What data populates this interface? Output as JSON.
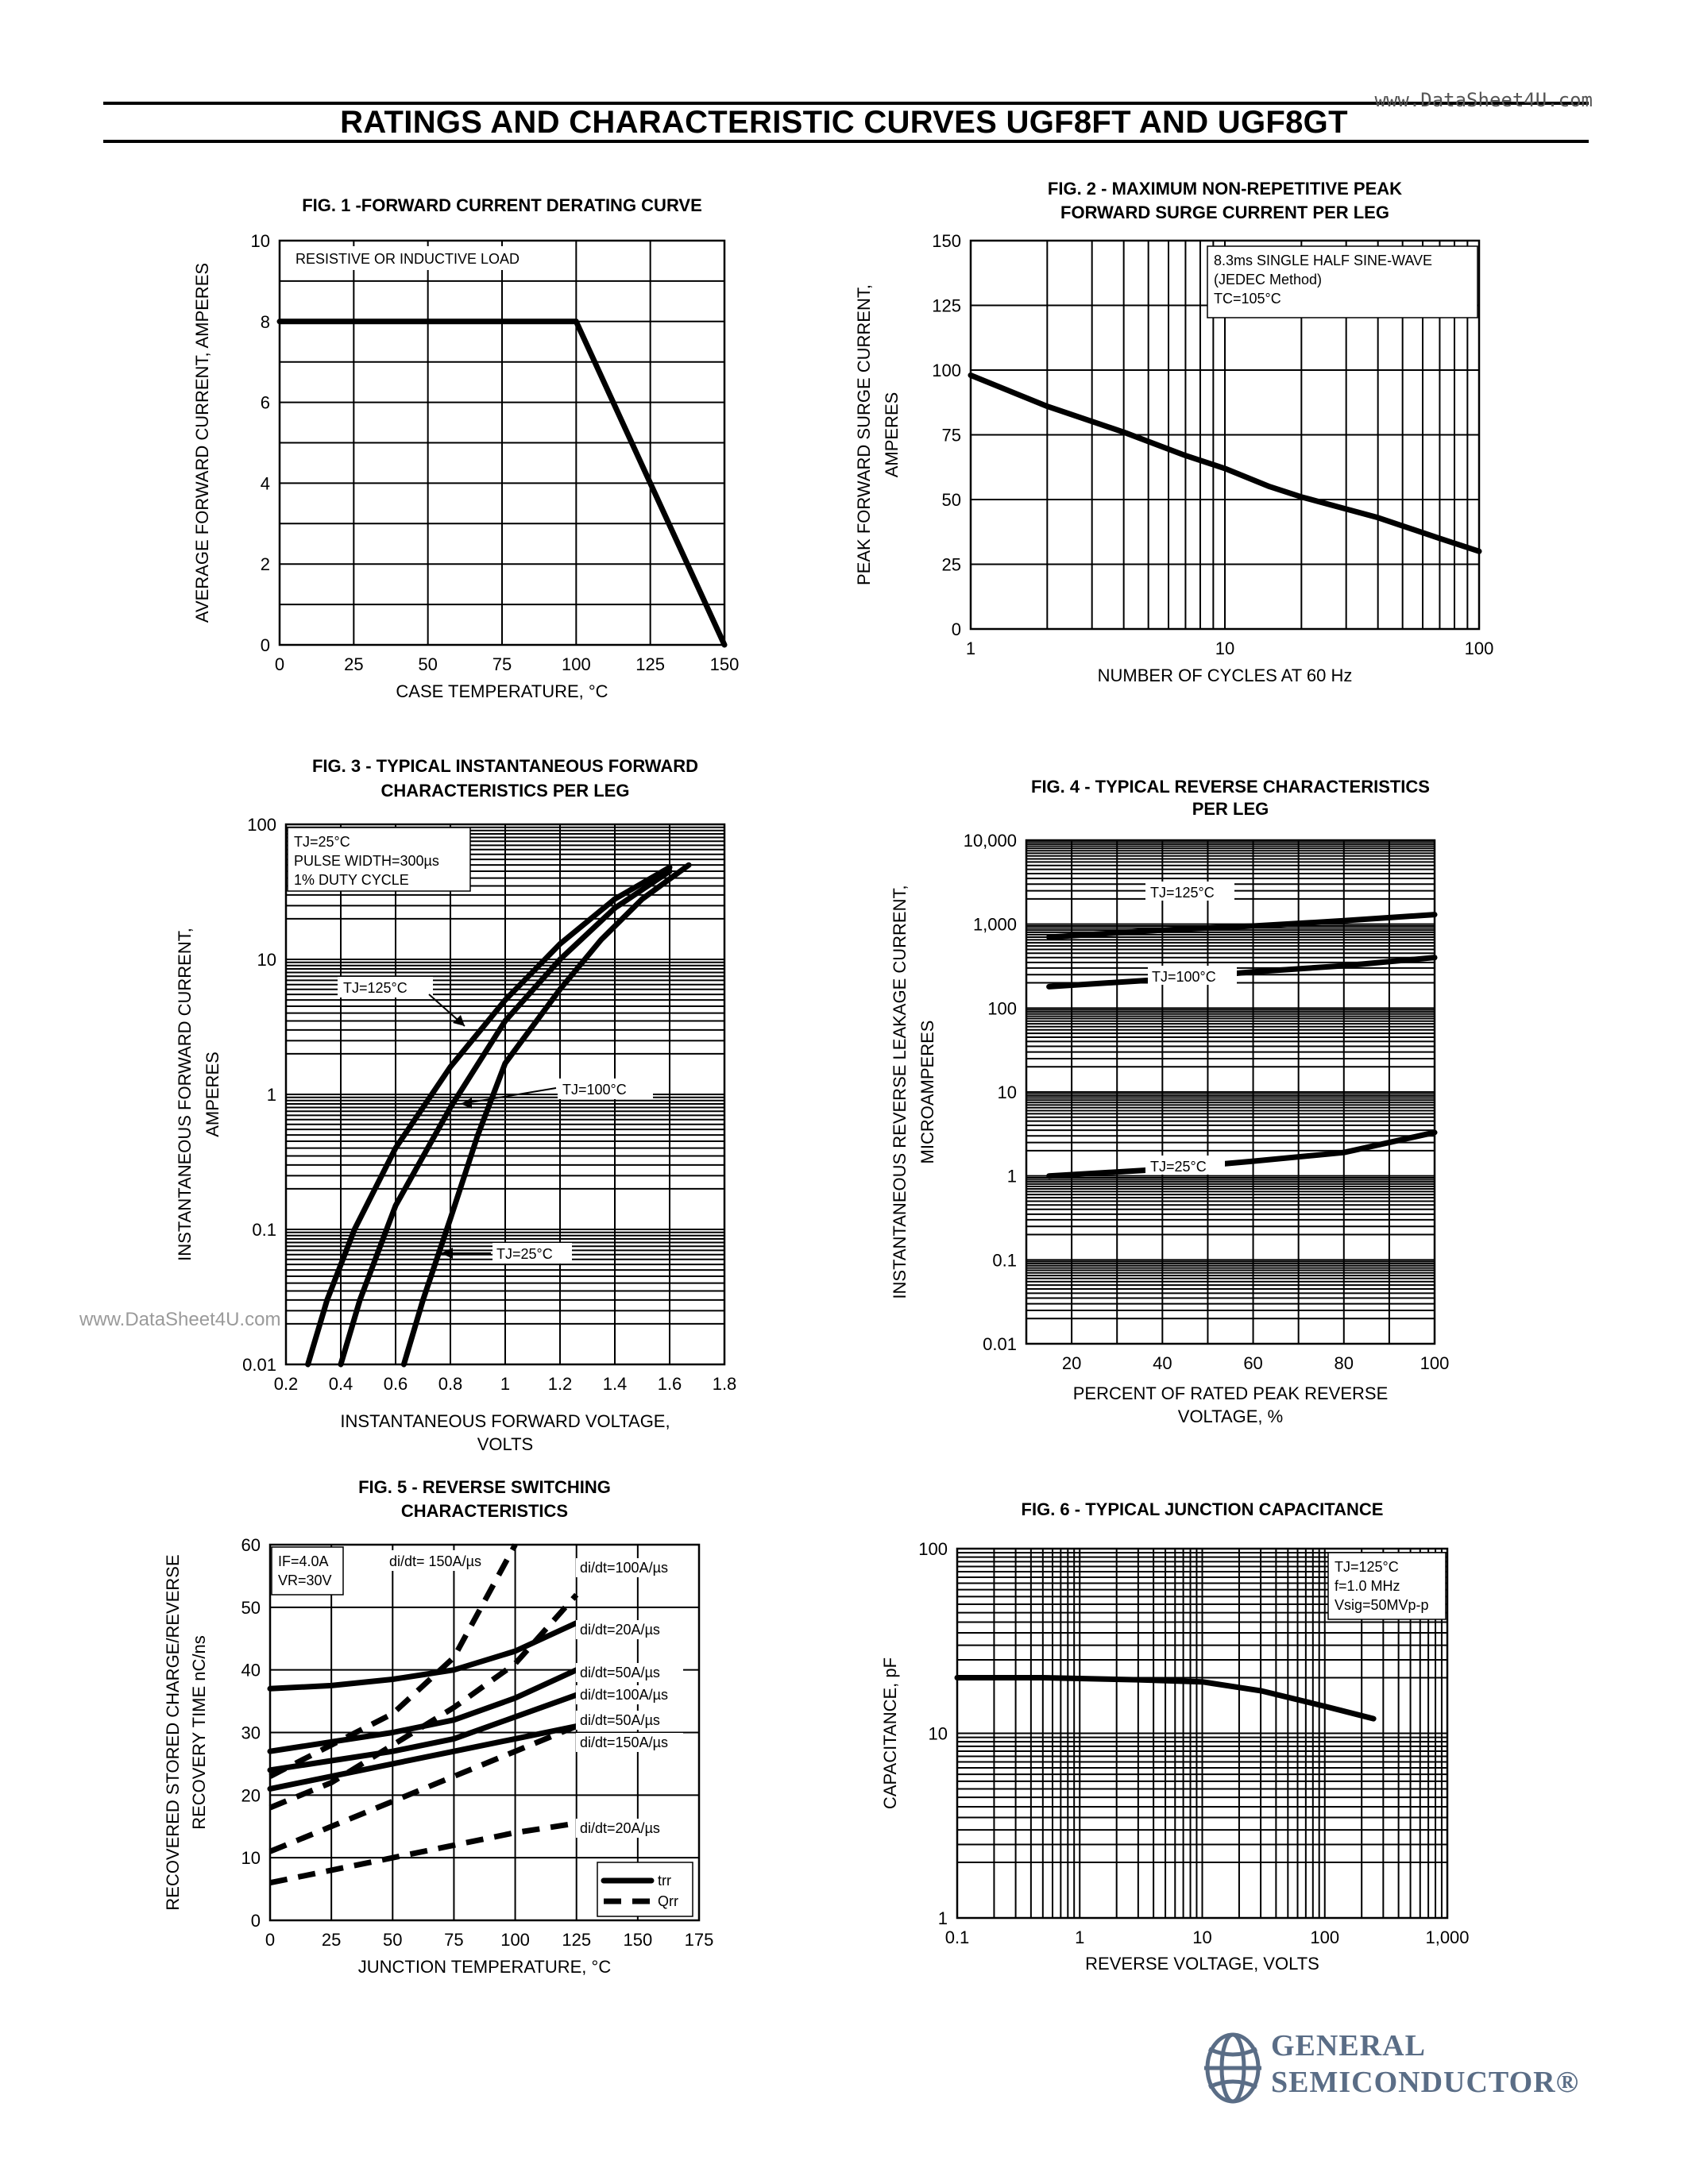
{
  "page": {
    "title": "RATINGS AND CHARACTERISTIC CURVES UGF8FT AND UGF8GT",
    "watermark_top": "www.DataSheet4U.com",
    "watermark_left": "www.DataSheet4U.com",
    "logo": {
      "line1": "GENERAL",
      "line2": "SEMICONDUCTOR®",
      "icon": "gs-emblem-icon",
      "color": "#5a6d86"
    }
  },
  "chart_data": [
    {
      "id": "fig1",
      "type": "line",
      "title": "FIG. 1 -FORWARD CURRENT DERATING CURVE",
      "xlabel": "CASE TEMPERATURE, °C",
      "ylabel": "AVERAGE FORWARD CURRENT, AMPERES",
      "xlim": [
        0,
        150
      ],
      "ylim": [
        0,
        10
      ],
      "xticks": [
        0,
        25,
        50,
        75,
        100,
        125,
        150
      ],
      "yticks": [
        0,
        2,
        4,
        6,
        8,
        10
      ],
      "annotations": [
        "RESISTIVE OR INDUCTIVE LOAD"
      ],
      "series": [
        {
          "x": [
            0,
            100,
            150
          ],
          "y": [
            8,
            8,
            0
          ]
        }
      ]
    },
    {
      "id": "fig2",
      "type": "line",
      "title": "FIG. 2 - MAXIMUM NON-REPETITIVE PEAK FORWARD SURGE CURRENT PER LEG",
      "xlabel": "NUMBER OF CYCLES AT 60 Hz",
      "ylabel": "PEAK FORWARD SURGE CURRENT, AMPERES",
      "xscale": "log",
      "xlim": [
        1,
        100
      ],
      "ylim": [
        0,
        150
      ],
      "xticks": [
        1,
        10,
        100
      ],
      "yticks": [
        0,
        25,
        50,
        75,
        100,
        125,
        150
      ],
      "annotations": [
        "8.3ms SINGLE HALF SINE-WAVE",
        "(JEDEC Method)",
        "TC=105°C"
      ],
      "series": [
        {
          "x": [
            1,
            2,
            4,
            7,
            10,
            15,
            20,
            40,
            70,
            100
          ],
          "y": [
            98,
            86,
            76,
            67,
            62,
            55,
            51,
            43,
            35,
            30
          ]
        }
      ]
    },
    {
      "id": "fig3",
      "type": "line",
      "title": "FIG. 3 - TYPICAL INSTANTANEOUS FORWARD CHARACTERISTICS PER LEG",
      "xlabel": "INSTANTANEOUS FORWARD VOLTAGE, VOLTS",
      "ylabel": "INSTANTANEOUS FORWARD CURRENT, AMPERES",
      "yscale": "log",
      "xlim": [
        0.2,
        1.8
      ],
      "ylim": [
        0.01,
        100
      ],
      "xticks": [
        "0.2",
        "0.4",
        "0.6",
        "0.8",
        "1",
        "1.2",
        "1.4",
        "1.6",
        "1.8"
      ],
      "yticks": [
        "0.01",
        "0.1",
        "1",
        "10",
        "100"
      ],
      "annotations": [
        "TJ=25°C",
        "PULSE WIDTH=300µs",
        "1% DUTY CYCLE"
      ],
      "series": [
        {
          "name": "TJ=125°C",
          "x": [
            0.28,
            0.35,
            0.45,
            0.6,
            0.8,
            1.0,
            1.2,
            1.4,
            1.6
          ],
          "y": [
            0.01,
            0.03,
            0.1,
            0.4,
            1.6,
            5,
            13,
            28,
            48
          ]
        },
        {
          "name": "TJ=100°C",
          "x": [
            0.4,
            0.47,
            0.6,
            0.8,
            1.0,
            1.2,
            1.4,
            1.6
          ],
          "y": [
            0.01,
            0.03,
            0.15,
            0.8,
            3.5,
            10,
            24,
            45
          ]
        },
        {
          "name": "TJ=25°C",
          "x": [
            0.63,
            0.7,
            0.8,
            0.9,
            1.0,
            1.2,
            1.35,
            1.5,
            1.67
          ],
          "y": [
            0.01,
            0.03,
            0.12,
            0.5,
            1.7,
            6,
            14,
            28,
            50
          ]
        }
      ]
    },
    {
      "id": "fig4",
      "type": "line",
      "title": "FIG. 4 - TYPICAL REVERSE CHARACTERISTICS PER LEG",
      "xlabel": "PERCENT OF RATED PEAK REVERSE VOLTAGE, %",
      "ylabel": "INSTANTANEOUS REVERSE LEAKAGE CURRENT, MICROAMPERES",
      "yscale": "log",
      "xlim": [
        10,
        100
      ],
      "ylim": [
        0.01,
        10000
      ],
      "xticks": [
        "20",
        "40",
        "60",
        "80",
        "100"
      ],
      "yticks": [
        "0.01",
        "0.1",
        "1",
        "10",
        "100",
        "1,000",
        "10,000"
      ],
      "series": [
        {
          "name": "TJ=125°C",
          "x": [
            15,
            40,
            60,
            80,
            100
          ],
          "y": [
            700,
            850,
            950,
            1100,
            1300
          ]
        },
        {
          "name": "TJ=100°C",
          "x": [
            15,
            40,
            60,
            80,
            100
          ],
          "y": [
            180,
            220,
            270,
            320,
            400
          ]
        },
        {
          "name": "TJ=25°C",
          "x": [
            15,
            40,
            60,
            80,
            100
          ],
          "y": [
            1.0,
            1.2,
            1.5,
            1.9,
            3.3
          ]
        }
      ]
    },
    {
      "id": "fig5",
      "type": "line",
      "title": "FIG. 5 - REVERSE SWITCHING CHARACTERISTICS",
      "xlabel": "JUNCTION TEMPERATURE, °C",
      "ylabel": "RECOVERED STORED CHARGE/REVERSE RECOVERY TIME nC/ns",
      "xlim": [
        0,
        175
      ],
      "ylim": [
        0,
        60
      ],
      "xticks": [
        0,
        25,
        50,
        75,
        100,
        125,
        150,
        175
      ],
      "yticks": [
        0,
        10,
        20,
        30,
        40,
        50,
        60
      ],
      "annotations": [
        "IF=4.0A",
        "VR=30V"
      ],
      "legend": [
        {
          "label": "trr",
          "style": "solid"
        },
        {
          "label": "Qrr",
          "style": "dashed"
        }
      ],
      "series": [
        {
          "name": "di/dt=20A/µs",
          "style": "solid",
          "x": [
            0,
            25,
            50,
            75,
            100,
            125
          ],
          "y": [
            37,
            37.5,
            38.5,
            40,
            43,
            47.5
          ]
        },
        {
          "name": "di/dt=50A/µs",
          "style": "solid",
          "x": [
            0,
            25,
            50,
            75,
            100,
            125
          ],
          "y": [
            27,
            28.5,
            30,
            32,
            35.5,
            40
          ]
        },
        {
          "name": "di/dt=100A/µs",
          "style": "solid",
          "x": [
            0,
            25,
            50,
            75,
            100,
            125
          ],
          "y": [
            24,
            25.5,
            27,
            29,
            32.5,
            36
          ]
        },
        {
          "name": "di/dt=150A/µs",
          "style": "solid",
          "x": [
            0,
            25,
            50,
            75,
            100,
            125
          ],
          "y": [
            21,
            23,
            25,
            27,
            29,
            31
          ]
        },
        {
          "name": "di/dt=150A/µs",
          "style": "dashed",
          "x": [
            0,
            25,
            50,
            75,
            100
          ],
          "y": [
            23,
            28,
            33,
            42,
            60
          ]
        },
        {
          "name": "di/dt=100A/µs",
          "style": "dashed",
          "x": [
            0,
            25,
            50,
            75,
            100,
            125
          ],
          "y": [
            18,
            22,
            28,
            34,
            41,
            52
          ]
        },
        {
          "name": "di/dt=50A/µs",
          "style": "dashed",
          "x": [
            0,
            25,
            50,
            75,
            100,
            125
          ],
          "y": [
            11,
            15,
            19,
            23,
            27,
            31
          ]
        },
        {
          "name": "di/dt=20A/µs",
          "style": "dashed",
          "x": [
            0,
            25,
            50,
            75,
            100,
            125
          ],
          "y": [
            6,
            8,
            10,
            12,
            14,
            15.5
          ]
        }
      ]
    },
    {
      "id": "fig6",
      "type": "line",
      "title": "FIG. 6 - TYPICAL JUNCTION CAPACITANCE",
      "xlabel": "REVERSE VOLTAGE, VOLTS",
      "ylabel": "CAPACITANCE, pF",
      "xscale": "log",
      "yscale": "log",
      "xlim": [
        0.1,
        1000
      ],
      "ylim": [
        1,
        100
      ],
      "xticks": [
        "0.1",
        "1",
        "10",
        "100",
        "1,000"
      ],
      "yticks": [
        "1",
        "10",
        "100"
      ],
      "annotations": [
        "TJ=125°C",
        "f=1.0 MHz",
        "Vsig=50MVp-p"
      ],
      "series": [
        {
          "x": [
            0.1,
            0.5,
            1,
            3,
            10,
            30,
            100,
            250
          ],
          "y": [
            20,
            20,
            19.8,
            19.5,
            19,
            17,
            14,
            12
          ]
        }
      ]
    }
  ]
}
